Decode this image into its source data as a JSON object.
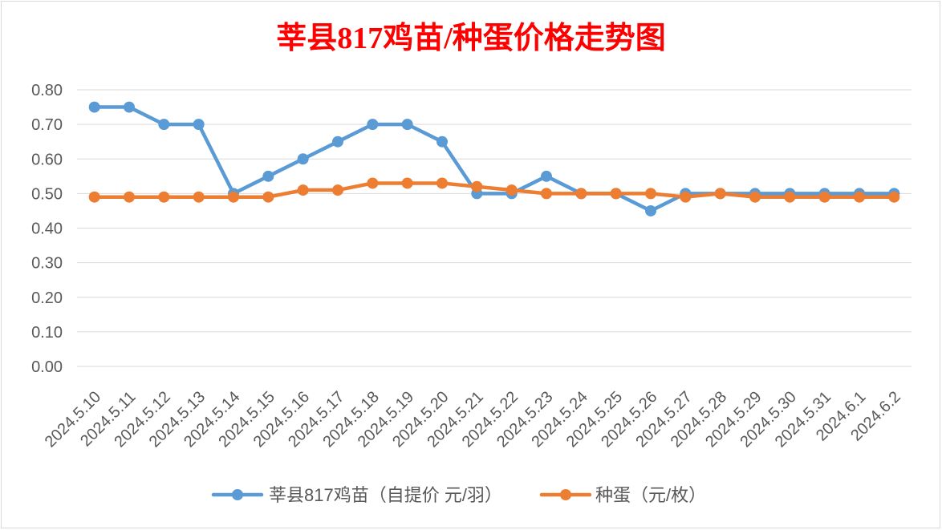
{
  "chart_data": {
    "type": "line",
    "title": "莘县817鸡苗/种蛋价格走势图",
    "title_color": "#FF0000",
    "categories": [
      "2024.5.10",
      "2024.5.11",
      "2024.5.12",
      "2024.5.13",
      "2024.5.14",
      "2024.5.15",
      "2024.5.16",
      "2024.5.17",
      "2024.5.18",
      "2024.5.19",
      "2024.5.20",
      "2024.5.21",
      "2024.5.22",
      "2024.5.23",
      "2024.5.24",
      "2024.5.25",
      "2024.5.26",
      "2024.5.27",
      "2024.5.28",
      "2024.5.29",
      "2024.5.30",
      "2024.5.31",
      "2024.6.1",
      "2024.6.2"
    ],
    "ylim": [
      0,
      0.8
    ],
    "ytick_labels": [
      "0.00",
      "0.10",
      "0.20",
      "0.30",
      "0.40",
      "0.50",
      "0.60",
      "0.70",
      "0.80"
    ],
    "grid": true,
    "legend_position": "bottom",
    "series": [
      {
        "name": "莘县817鸡苗（自提价 元/羽）",
        "color": "#5B9BD5",
        "values": [
          0.75,
          0.75,
          0.7,
          0.7,
          0.5,
          0.55,
          0.6,
          0.65,
          0.7,
          0.7,
          0.65,
          0.5,
          0.5,
          0.55,
          0.5,
          0.5,
          0.45,
          0.5,
          0.5,
          0.5,
          0.5,
          0.5,
          0.5,
          0.5
        ]
      },
      {
        "name": "种蛋（元/枚）",
        "color": "#ED7D31",
        "values": [
          0.49,
          0.49,
          0.49,
          0.49,
          0.49,
          0.49,
          0.51,
          0.51,
          0.53,
          0.53,
          0.53,
          0.52,
          0.51,
          0.5,
          0.5,
          0.5,
          0.5,
          0.49,
          0.5,
          0.49,
          0.49,
          0.49,
          0.49,
          0.49
        ]
      }
    ]
  }
}
